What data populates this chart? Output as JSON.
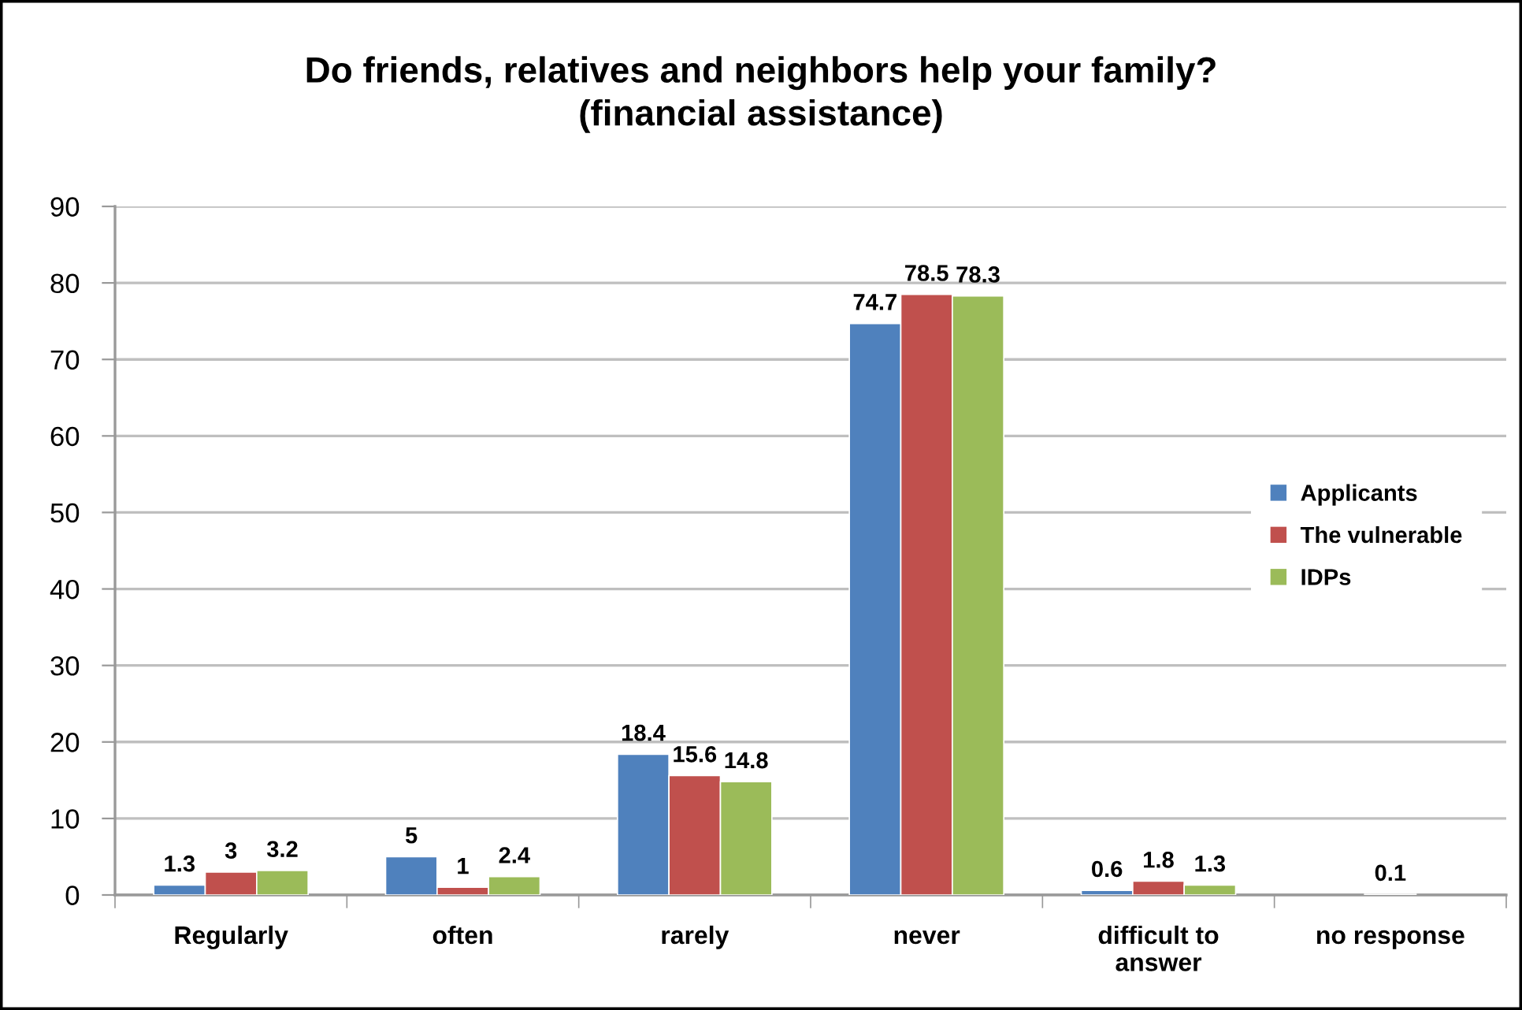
{
  "chart_data": {
    "type": "bar",
    "title": "Do friends, relatives and neighbors help your family?\n(financial assistance)",
    "categories": [
      "Regularly",
      "often",
      "rarely",
      "never",
      "difficult to\nanswer",
      "no response"
    ],
    "series": [
      {
        "name": "Applicants",
        "color": "#4f81bd",
        "values": [
          1.3,
          5,
          18.4,
          74.7,
          0.6,
          null
        ]
      },
      {
        "name": "The vulnerable",
        "color": "#c0504d",
        "values": [
          3,
          1,
          15.6,
          78.5,
          1.8,
          0.1
        ]
      },
      {
        "name": "IDPs",
        "color": "#9bbb59",
        "values": [
          3.2,
          2.4,
          14.8,
          78.3,
          1.3,
          null
        ]
      }
    ],
    "ylim": [
      0,
      90
    ],
    "yticks": [
      0,
      10,
      20,
      30,
      40,
      50,
      60,
      70,
      80,
      90
    ],
    "grid": "y",
    "legend": "right",
    "data_labels": true
  }
}
